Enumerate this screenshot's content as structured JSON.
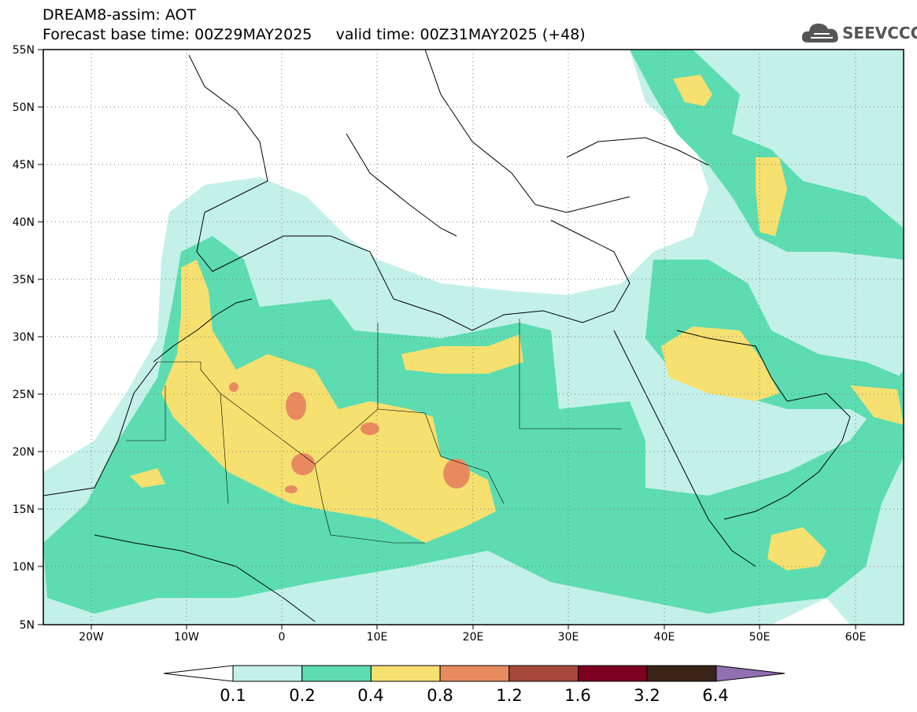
{
  "header": {
    "title": "DREAM8-assim: AOT",
    "base_time_label": "Forecast base time: 00Z29MAY2025",
    "valid_time_label": "valid time: 00Z31MAY2025 (+48)"
  },
  "logo": {
    "text": "SEEVCCC",
    "icon": "cloud-icon"
  },
  "map": {
    "variable": "AOT",
    "lon_range": [
      -25,
      65
    ],
    "lat_range": [
      5,
      55
    ],
    "lat_ticks": [
      "5N",
      "10N",
      "15N",
      "20N",
      "25N",
      "30N",
      "35N",
      "40N",
      "45N",
      "50N",
      "55N"
    ],
    "lon_ticks": [
      "20W",
      "10W",
      "0",
      "10E",
      "20E",
      "30E",
      "40E",
      "50E",
      "60E"
    ],
    "grid": "dotted"
  },
  "colorbar": {
    "levels": [
      "0.1",
      "0.2",
      "0.4",
      "0.8",
      "1.2",
      "1.6",
      "3.2",
      "6.4"
    ],
    "colors": [
      "#ffffff",
      "#c4f0ea",
      "#5cdcb0",
      "#f6e070",
      "#e88a60",
      "#a8483a",
      "#7c0020",
      "#3a2418",
      "#9070b0"
    ]
  }
}
